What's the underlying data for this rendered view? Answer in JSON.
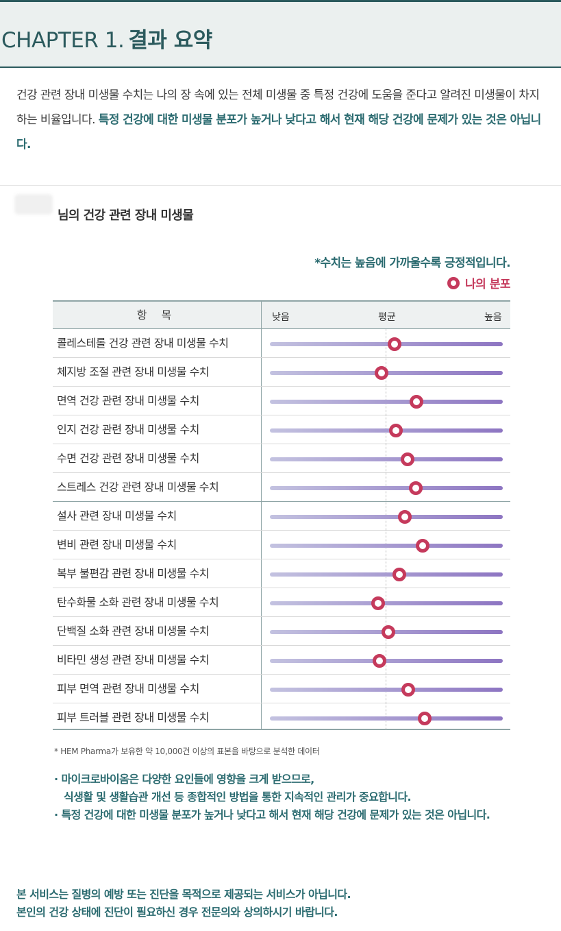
{
  "header": {
    "chapter": "CHAPTER 1.",
    "title": "결과 요약"
  },
  "intro": {
    "text": "건강 관련 장내 미생물 수치는 나의 장 속에 있는 전체 미생물 중 특정 건강에 도움을 준다고 알려진 미생물이 차지하는 비율입니다. ",
    "highlight": "특정 건강에 대한 미생물 분포가 높거나 낮다고 해서 현재 해당 건강에 문제가 있는 것은 아닙니다."
  },
  "section": {
    "title": "님의 건강 관련 장내 미생물"
  },
  "note": "*수치는 높음에 가까울수록 긍정적입니다.",
  "legend": {
    "label": "나의 분포",
    "color": "#c53a5c"
  },
  "table": {
    "header_item": "항 목",
    "scale_low": "낮음",
    "scale_avg": "평균",
    "scale_high": "높음",
    "rows": [
      {
        "label": "콜레스테롤 건강 관련 장내 미생물 수치",
        "value": 0.535
      },
      {
        "label": "체지방 조절 관련 장내 미생물 수치",
        "value": 0.48
      },
      {
        "label": "면역 건강 관련 장내 미생물 수치",
        "value": 0.63
      },
      {
        "label": "인지 건강 관련 장내 미생물 수치",
        "value": 0.54
      },
      {
        "label": "수면 건강 관련 장내 미생물 수치",
        "value": 0.59
      },
      {
        "label": "스트레스 건강 관련 장내 미생물 수치",
        "value": 0.625
      },
      {
        "label": "설사 관련 장내 미생물 수치",
        "value": 0.58
      },
      {
        "label": "변비 관련 장내 미생물 수치",
        "value": 0.655
      },
      {
        "label": "복부 불편감 관련 장내 미생물 수치",
        "value": 0.555
      },
      {
        "label": "탄수화물 소화 관련 장내 미생물 수치",
        "value": 0.465
      },
      {
        "label": "단백질 소화 관련 장내 미생물 수치",
        "value": 0.51
      },
      {
        "label": "비타민 생성 관련 장내 미생물 수치",
        "value": 0.47
      },
      {
        "label": "피부 면역 관련 장내 미생물 수치",
        "value": 0.595
      },
      {
        "label": "피부 트러블 관련 장내 미생물 수치",
        "value": 0.665
      }
    ]
  },
  "footnote": "* HEM Pharma가 보유한 약 10,000건 이상의 표본을 바탕으로 분석한 데이터",
  "bullets": {
    "b1_line1": "· 마이크로바이옴은 다양한 요인들에 영향을 크게 받으므로,",
    "b1_line2": "식생활 및 생활습관 개선 등 종합적인 방법을 통한 지속적인 관리가 중요합니다.",
    "b2": "· 특정 건강에 대한 미생물 분포가 높거나 낮다고 해서 현재 해당 건강에 문제가 있는 것은 아닙니다."
  },
  "disclaimer": {
    "line1": "본 서비스는 질병의 예방 또는 진단을 목적으로 제공되는 서비스가 아닙니다.",
    "line2": "본인의 건강 상태에 진단이 필요하신 경우 전문의와 상의하시기 바랍니다."
  },
  "colors": {
    "accent": "#2b6b70",
    "header_bg": "#ebf0ef",
    "marker": "#c53a5c",
    "bar_start": "#c3c2e0",
    "bar_end": "#8d75c2"
  }
}
